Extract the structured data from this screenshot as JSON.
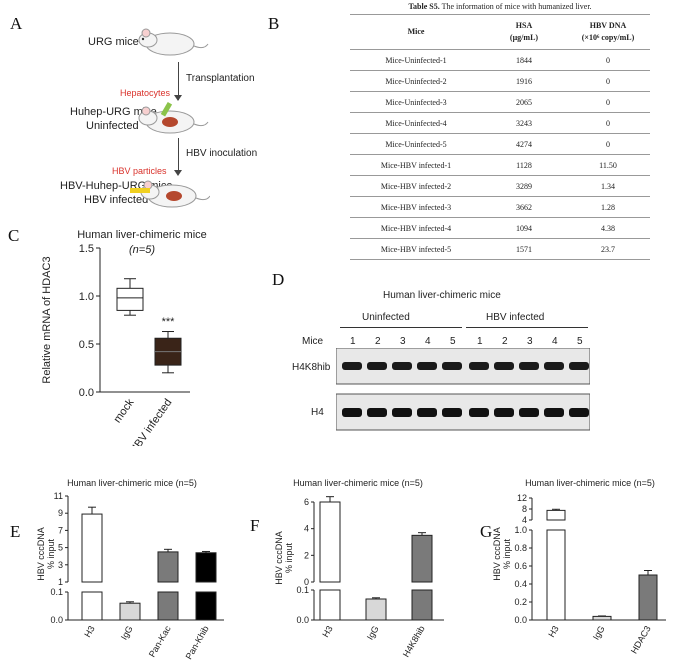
{
  "panelA": {
    "label": "A",
    "urg": "URG mice",
    "hepatocytes": "Hepatocytes",
    "transplantation": "Transplantation",
    "huhep_1": "Huhep-URG mice",
    "huhep_2": "Uninfected",
    "hbv_particles": "HBV particles",
    "hbv_inoculation": "HBV inoculation",
    "hbvhuhep_1": "HBV-Huhep-URG mice",
    "hbvhuhep_2": "HBV infected"
  },
  "panelB": {
    "label": "B",
    "caption_bold": "Table S5.",
    "caption_rest": " The information of mice with humanized liver.",
    "col_mice": "Mice",
    "col_hsa_1": "HSA",
    "col_hsa_2": "(µg/mL)",
    "col_hbv_1": "HBV DNA",
    "col_hbv_2": "(×10⁶ copy/mL)",
    "rows": [
      {
        "mice": "Mice-Uninfected-1",
        "hsa": "1844",
        "hbv": "0"
      },
      {
        "mice": "Mice-Uninfected-2",
        "hsa": "1916",
        "hbv": "0"
      },
      {
        "mice": "Mice-Uninfected-3",
        "hsa": "2065",
        "hbv": "0"
      },
      {
        "mice": "Mice-Uninfected-4",
        "hsa": "3243",
        "hbv": "0"
      },
      {
        "mice": "Mice-Uninfected-5",
        "hsa": "4274",
        "hbv": "0"
      },
      {
        "mice": "Mice-HBV infected-1",
        "hsa": "1128",
        "hbv": "11.50"
      },
      {
        "mice": "Mice-HBV infected-2",
        "hsa": "3289",
        "hbv": "1.34"
      },
      {
        "mice": "Mice-HBV infected-3",
        "hsa": "3662",
        "hbv": "1.28"
      },
      {
        "mice": "Mice-HBV infected-4",
        "hsa": "1094",
        "hbv": "4.38"
      },
      {
        "mice": "Mice-HBV infected-5",
        "hsa": "1571",
        "hbv": "23.7"
      }
    ]
  },
  "panelD": {
    "label": "D",
    "title": "Human liver-chimeric mice",
    "group1": "Uninfected",
    "group2": "HBV infected",
    "mice_label": "Mice",
    "lanes": [
      "1",
      "2",
      "3",
      "4",
      "5",
      "1",
      "2",
      "3",
      "4",
      "5"
    ],
    "band1": "H4K8hib",
    "band2": "H4"
  },
  "chart_data": [
    {
      "panel": "C",
      "type": "box",
      "title": "Human liver-chimeric mice",
      "subtitle": "(n=5)",
      "ylabel": "Relative mRNA of HDAC3",
      "ylim": [
        0,
        1.5
      ],
      "yticks": [
        "0.0",
        "0.5",
        "1.0",
        "1.5"
      ],
      "categories": [
        "mock",
        "HBV infected"
      ],
      "boxes": [
        {
          "name": "mock",
          "min": 0.8,
          "q1": 0.85,
          "median": 0.98,
          "q3": 1.08,
          "max": 1.18
        },
        {
          "name": "HBV infected",
          "min": 0.2,
          "q1": 0.28,
          "median": 0.42,
          "q3": 0.56,
          "max": 0.63
        }
      ],
      "annotation": "***"
    },
    {
      "panel": "E",
      "type": "bar",
      "title": "Human liver-chimeric mice (n=5)",
      "ylabel_1": "HBV cccDNA",
      "ylabel_2": "% input",
      "upper_ticks": [
        "1",
        "3",
        "5",
        "7",
        "9",
        "11"
      ],
      "lower_ticks": [
        "0.0",
        "0.1"
      ],
      "categories": [
        "H3",
        "IgG",
        "Pan-Kac",
        "Pan-Khib"
      ],
      "values": [
        8.9,
        0.06,
        4.5,
        4.4
      ],
      "errors": [
        0.8,
        0.005,
        0.3,
        0.15
      ],
      "fills": [
        "#ffffff",
        "#d8d8d8",
        "#7a7a7a",
        "#000000"
      ]
    },
    {
      "panel": "F",
      "type": "bar",
      "title": "Human liver-chimeric mice (n=5)",
      "ylabel_1": "HBV cccDNA",
      "ylabel_2": "% input",
      "upper_ticks": [
        "0",
        "2",
        "4",
        "6"
      ],
      "lower_ticks": [
        "0.0",
        "0.1"
      ],
      "categories": [
        "H3",
        "IgG",
        "H4K8hib"
      ],
      "values": [
        6.0,
        0.07,
        3.5
      ],
      "errors": [
        0.4,
        0.004,
        0.2
      ],
      "fills": [
        "#ffffff",
        "#d8d8d8",
        "#7a7a7a"
      ]
    },
    {
      "panel": "G",
      "type": "bar",
      "title": "Human liver-chimeric mice (n=5)",
      "ylabel_1": "HBV cccDNA",
      "ylabel_2": "% input",
      "upper_ticks": [
        "4",
        "8",
        "12"
      ],
      "lower_ticks": [
        "0.0",
        "0.2",
        "0.4",
        "0.6",
        "0.8",
        "1.0"
      ],
      "categories": [
        "H3",
        "IgG",
        "HDAC3"
      ],
      "values": [
        7.5,
        0.04,
        0.5
      ],
      "errors": [
        0.4,
        0.005,
        0.05
      ],
      "fills": [
        "#ffffff",
        "#d8d8d8",
        "#7a7a7a"
      ]
    }
  ]
}
